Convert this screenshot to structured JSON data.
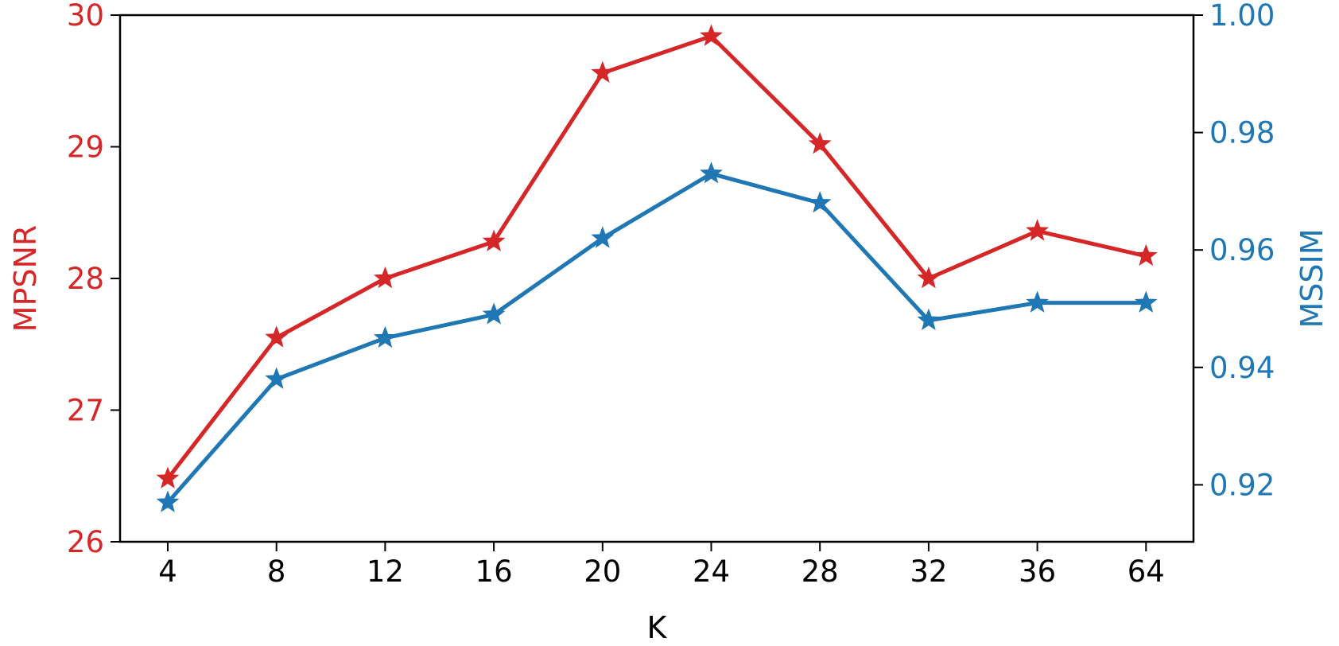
{
  "chart_data": {
    "type": "line",
    "xlabel": "K",
    "categories": [
      "4",
      "8",
      "12",
      "16",
      "20",
      "24",
      "28",
      "32",
      "36",
      "64"
    ],
    "y_left": {
      "label": "MPSNR",
      "lim": [
        26,
        30
      ],
      "ticks": [
        26,
        27,
        28,
        29,
        30
      ],
      "tick_labels": [
        "26",
        "27",
        "28",
        "29",
        "30"
      ],
      "color": "#d62728"
    },
    "y_right": {
      "label": "MSSIM",
      "lim": [
        0.9103,
        1.0
      ],
      "ticks": [
        0.92,
        0.94,
        0.96,
        0.98,
        1.0
      ],
      "tick_labels": [
        "0.92",
        "0.94",
        "0.96",
        "0.98",
        "1.00"
      ],
      "color": "#1f77b4"
    },
    "series": [
      {
        "name": "MPSNR",
        "axis": "left",
        "color": "#d62728",
        "marker": "star",
        "values": [
          26.48,
          27.55,
          28.0,
          28.28,
          29.56,
          29.84,
          29.02,
          28.0,
          28.36,
          28.17
        ]
      },
      {
        "name": "MSSIM",
        "axis": "right",
        "color": "#1f77b4",
        "marker": "star",
        "values": [
          0.917,
          0.938,
          0.945,
          0.949,
          0.962,
          0.973,
          0.968,
          0.948,
          0.951,
          0.951
        ]
      }
    ],
    "grid": false,
    "legend": "none"
  }
}
